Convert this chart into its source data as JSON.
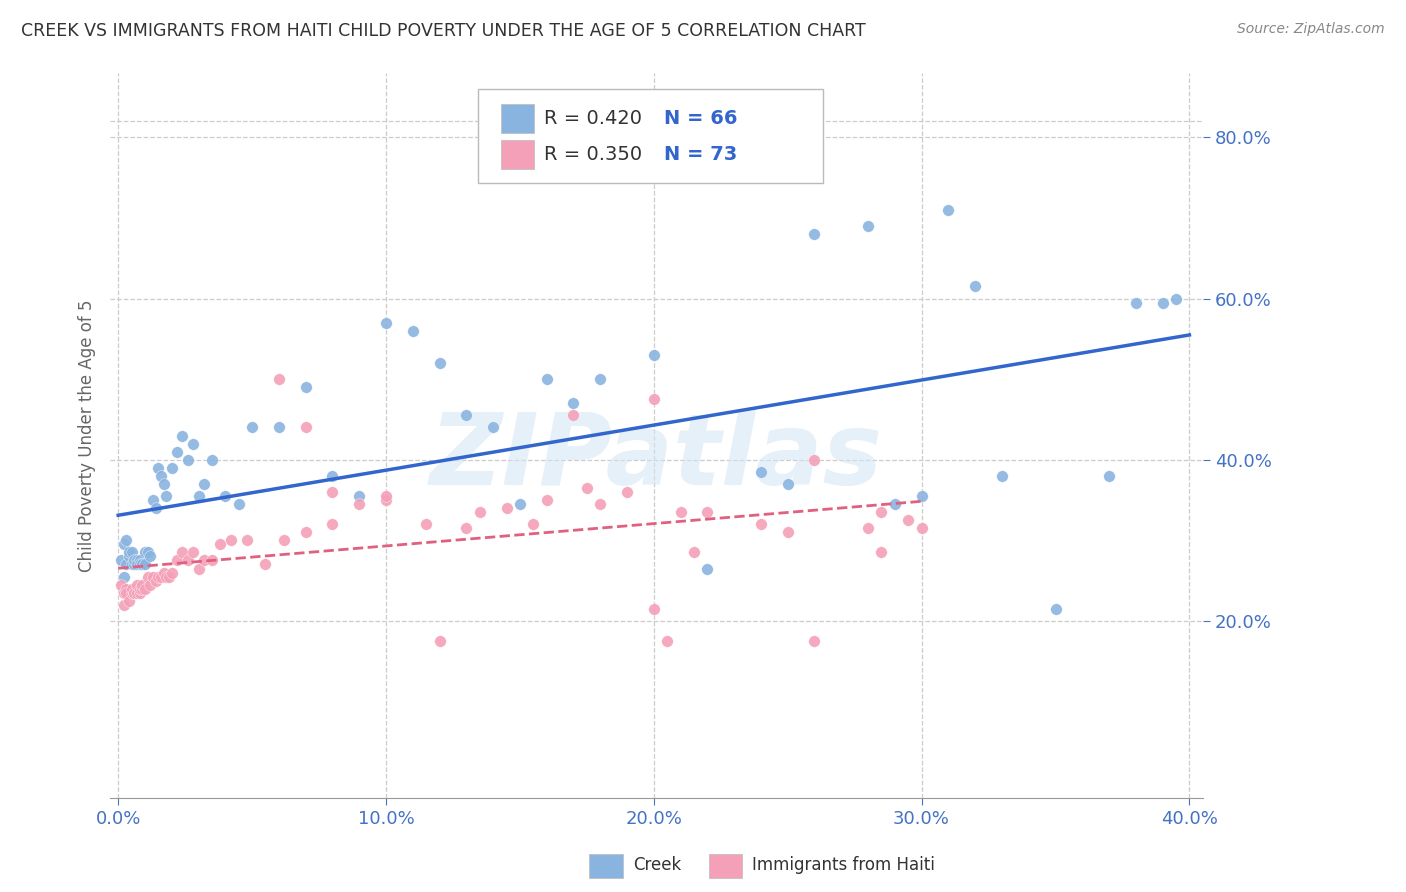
{
  "title": "CREEK VS IMMIGRANTS FROM HAITI CHILD POVERTY UNDER THE AGE OF 5 CORRELATION CHART",
  "source": "Source: ZipAtlas.com",
  "ylabel": "Child Poverty Under the Age of 5",
  "xlim": [
    -0.003,
    0.405
  ],
  "ylim": [
    -0.02,
    0.88
  ],
  "xticks": [
    0.0,
    0.1,
    0.2,
    0.3,
    0.4
  ],
  "xtick_labels": [
    "0.0%",
    "10.0%",
    "20.0%",
    "30.0%",
    "40.0%"
  ],
  "yticks": [
    0.2,
    0.4,
    0.6,
    0.8
  ],
  "ytick_labels": [
    "20.0%",
    "40.0%",
    "60.0%",
    "80.0%"
  ],
  "creek_color": "#8ab4e0",
  "haiti_color": "#f4a0b8",
  "creek_line_color": "#3366cc",
  "haiti_line_color": "#e06080",
  "legend_r_creek": "R = 0.420",
  "legend_n_creek": "N = 66",
  "legend_r_haiti": "R = 0.350",
  "legend_n_haiti": "N = 73",
  "creek_label": "Creek",
  "haiti_label": "Immigrants from Haiti",
  "watermark": "ZIPatlas",
  "creek_x": [
    0.001,
    0.002,
    0.002,
    0.003,
    0.003,
    0.004,
    0.004,
    0.005,
    0.005,
    0.006,
    0.006,
    0.007,
    0.007,
    0.008,
    0.008,
    0.009,
    0.01,
    0.01,
    0.011,
    0.012,
    0.013,
    0.014,
    0.015,
    0.016,
    0.017,
    0.018,
    0.02,
    0.022,
    0.024,
    0.026,
    0.028,
    0.03,
    0.032,
    0.035,
    0.04,
    0.045,
    0.05,
    0.06,
    0.07,
    0.08,
    0.09,
    0.1,
    0.11,
    0.12,
    0.14,
    0.16,
    0.18,
    0.2,
    0.22,
    0.24,
    0.26,
    0.28,
    0.3,
    0.31,
    0.33,
    0.35,
    0.37,
    0.38,
    0.39,
    0.395,
    0.15,
    0.13,
    0.17,
    0.25,
    0.29,
    0.32
  ],
  "creek_y": [
    0.275,
    0.255,
    0.295,
    0.27,
    0.3,
    0.28,
    0.285,
    0.27,
    0.285,
    0.27,
    0.275,
    0.275,
    0.27,
    0.275,
    0.27,
    0.27,
    0.285,
    0.27,
    0.285,
    0.28,
    0.35,
    0.34,
    0.39,
    0.38,
    0.37,
    0.355,
    0.39,
    0.41,
    0.43,
    0.4,
    0.42,
    0.355,
    0.37,
    0.4,
    0.355,
    0.345,
    0.44,
    0.44,
    0.49,
    0.38,
    0.355,
    0.57,
    0.56,
    0.52,
    0.44,
    0.5,
    0.5,
    0.53,
    0.265,
    0.385,
    0.68,
    0.69,
    0.355,
    0.71,
    0.38,
    0.215,
    0.38,
    0.595,
    0.595,
    0.6,
    0.345,
    0.455,
    0.47,
    0.37,
    0.345,
    0.615
  ],
  "haiti_x": [
    0.001,
    0.002,
    0.002,
    0.003,
    0.003,
    0.004,
    0.005,
    0.005,
    0.006,
    0.006,
    0.007,
    0.007,
    0.008,
    0.008,
    0.009,
    0.009,
    0.01,
    0.011,
    0.012,
    0.013,
    0.014,
    0.015,
    0.016,
    0.017,
    0.018,
    0.019,
    0.02,
    0.022,
    0.024,
    0.026,
    0.028,
    0.03,
    0.032,
    0.035,
    0.038,
    0.042,
    0.048,
    0.055,
    0.062,
    0.07,
    0.08,
    0.09,
    0.1,
    0.115,
    0.13,
    0.145,
    0.16,
    0.18,
    0.2,
    0.22,
    0.24,
    0.26,
    0.28,
    0.3,
    0.19,
    0.21,
    0.17,
    0.25,
    0.175,
    0.285,
    0.155,
    0.2,
    0.135,
    0.06,
    0.07,
    0.08,
    0.1,
    0.12,
    0.205,
    0.215,
    0.26,
    0.285,
    0.295
  ],
  "haiti_y": [
    0.245,
    0.22,
    0.235,
    0.24,
    0.235,
    0.225,
    0.235,
    0.24,
    0.235,
    0.235,
    0.235,
    0.245,
    0.235,
    0.24,
    0.24,
    0.245,
    0.24,
    0.255,
    0.245,
    0.255,
    0.25,
    0.255,
    0.255,
    0.26,
    0.255,
    0.255,
    0.26,
    0.275,
    0.285,
    0.275,
    0.285,
    0.265,
    0.275,
    0.275,
    0.295,
    0.3,
    0.3,
    0.27,
    0.3,
    0.31,
    0.32,
    0.345,
    0.35,
    0.32,
    0.315,
    0.34,
    0.35,
    0.345,
    0.475,
    0.335,
    0.32,
    0.4,
    0.315,
    0.315,
    0.36,
    0.335,
    0.455,
    0.31,
    0.365,
    0.335,
    0.32,
    0.215,
    0.335,
    0.5,
    0.44,
    0.36,
    0.355,
    0.175,
    0.175,
    0.285,
    0.175,
    0.285,
    0.325
  ],
  "background_color": "#ffffff",
  "grid_color": "#cccccc",
  "title_color": "#333333",
  "tick_label_color": "#4472c4"
}
